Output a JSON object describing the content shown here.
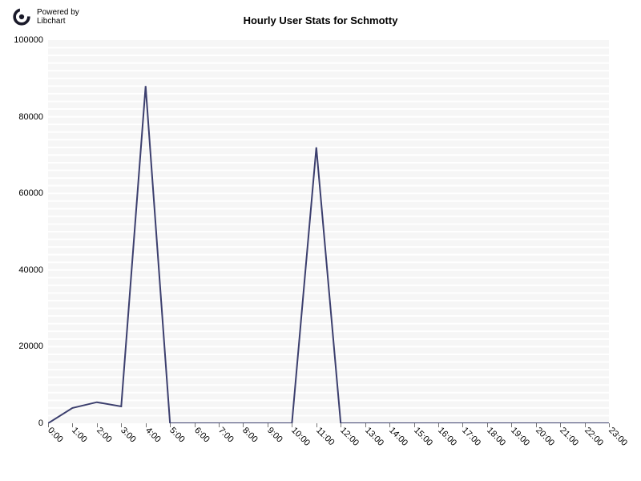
{
  "logo": {
    "line1": "Powered by",
    "line2": "Libchart",
    "glyph_color": "#1a1a2a"
  },
  "chart": {
    "type": "line",
    "title": "Hourly User Stats for Schmotty",
    "title_fontsize": 13,
    "title_fontweight": "bold",
    "label_fontsize": 11,
    "background_color": "#ffffff",
    "plot_background": "#f6f6f6",
    "grid_color": "#ffffff",
    "axis_color": "#767676",
    "line_color": "#3c3f6e",
    "line_width": 2,
    "axis_font_color": "#000000",
    "ylim": [
      0,
      100000
    ],
    "ytick_step": 20000,
    "yticks": [
      0,
      20000,
      40000,
      60000,
      80000,
      100000
    ],
    "xlabels": [
      "0:00",
      "1:00",
      "2:00",
      "3:00",
      "4:00",
      "5:00",
      "6:00",
      "7:00",
      "8:00",
      "9:00",
      "10:00",
      "11:00",
      "12:00",
      "13:00",
      "14:00",
      "15:00",
      "16:00",
      "17:00",
      "18:00",
      "19:00",
      "20:00",
      "21:00",
      "22:00",
      "23:00"
    ],
    "values": [
      0,
      4000,
      5500,
      4400,
      88000,
      0,
      0,
      0,
      0,
      0,
      0,
      72000,
      0,
      0,
      0,
      0,
      0,
      0,
      0,
      0,
      0,
      0,
      0,
      0
    ],
    "xlabel_rotation_deg": 45,
    "grid_rows": 50
  }
}
